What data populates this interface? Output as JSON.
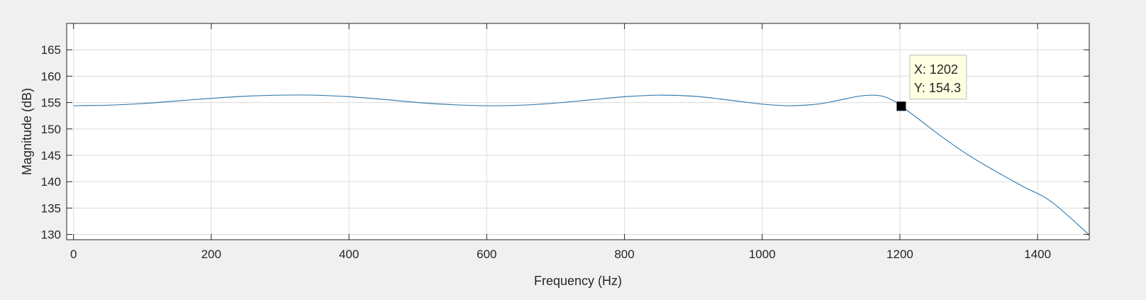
{
  "chart_data": {
    "type": "line",
    "title": "",
    "xlabel": "Frequency (Hz)",
    "ylabel": "Magnitude (dB)",
    "xlim": [
      -10,
      1475
    ],
    "ylim": [
      129,
      170
    ],
    "grid": true,
    "xticks": [
      0,
      200,
      400,
      600,
      800,
      1000,
      1200,
      1400
    ],
    "yticks": [
      130,
      135,
      140,
      145,
      150,
      155,
      160,
      165
    ],
    "xtick_labels": [
      "0",
      "200",
      "400",
      "600",
      "800",
      "1000",
      "1200",
      "1400"
    ],
    "ytick_labels": [
      "130",
      "135",
      "140",
      "145",
      "150",
      "155",
      "160",
      "165"
    ],
    "series": [
      {
        "color": "#3a7fb0",
        "x": [
          0,
          50,
          100,
          150,
          200,
          250,
          300,
          350,
          400,
          450,
          500,
          550,
          600,
          650,
          700,
          750,
          800,
          850,
          900,
          950,
          1000,
          1040,
          1080,
          1110,
          1140,
          1160,
          1175,
          1190,
          1202,
          1230,
          1260,
          1300,
          1340,
          1380,
          1420,
          1475
        ],
        "y": [
          154.4,
          154.5,
          154.8,
          155.3,
          155.8,
          156.2,
          156.4,
          156.4,
          156.1,
          155.6,
          155.0,
          154.6,
          154.4,
          154.5,
          154.9,
          155.5,
          156.1,
          156.4,
          156.2,
          155.5,
          154.7,
          154.4,
          154.7,
          155.4,
          156.2,
          156.4,
          156.2,
          155.4,
          154.3,
          151.6,
          148.6,
          145.0,
          141.9,
          139.0,
          136.2,
          129.9
        ]
      }
    ],
    "datatip": {
      "x": 1202,
      "y": 154.3,
      "label_x": "X: 1202",
      "label_y": "Y: 154.3"
    }
  }
}
